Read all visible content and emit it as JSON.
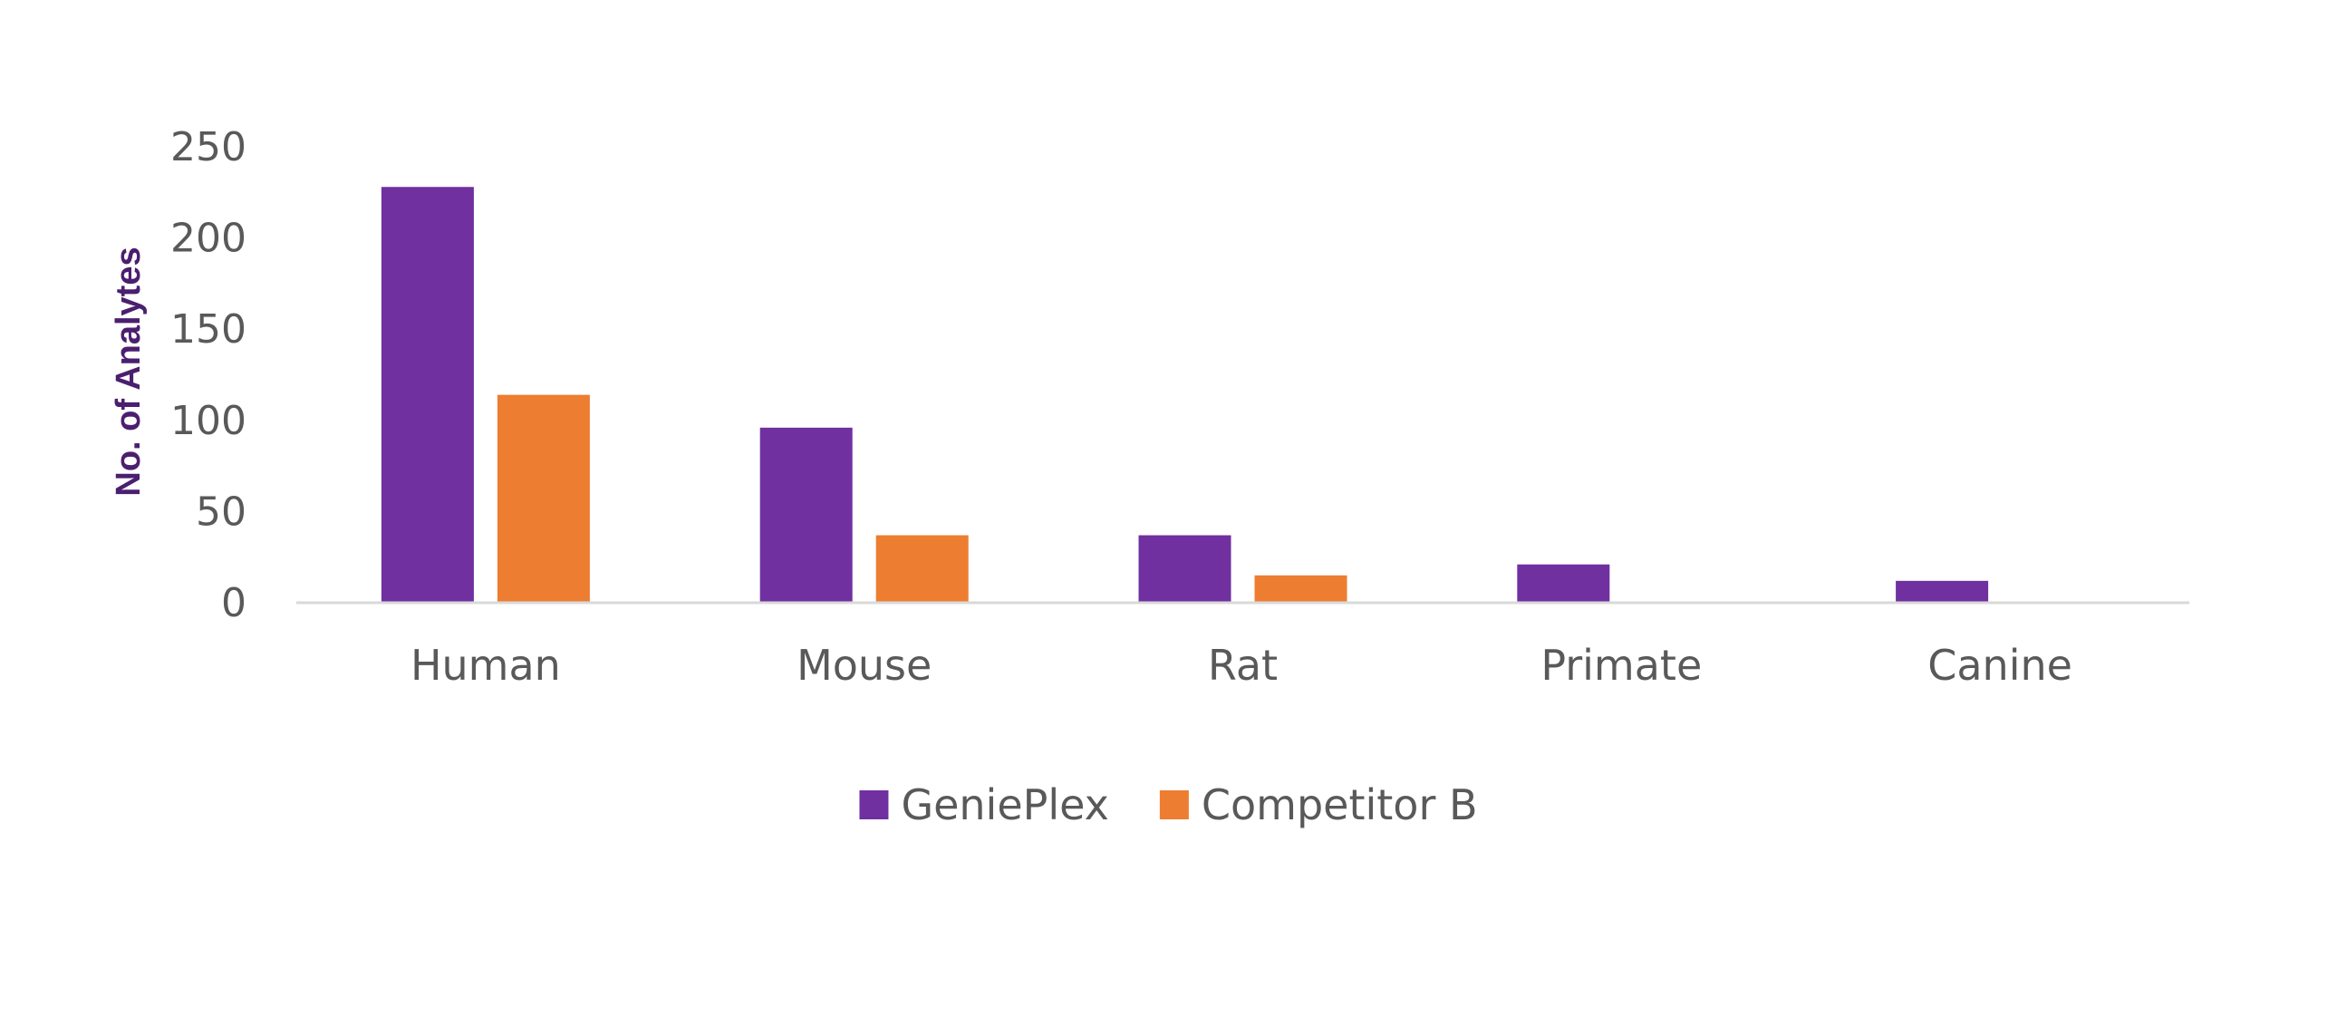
{
  "chart_data": {
    "type": "bar",
    "title": "",
    "xlabel": "",
    "ylabel": "No. of Analytes",
    "ylim": [
      0,
      250
    ],
    "yticks": [
      0,
      50,
      100,
      150,
      200,
      250
    ],
    "grid": false,
    "legend_position": "bottom",
    "categories": [
      "Human",
      "Mouse",
      "Rat",
      "Primate",
      "Canine"
    ],
    "series": [
      {
        "name": "GeniePlex",
        "color": "#7030a0",
        "values": [
          228,
          96,
          37,
          21,
          12
        ]
      },
      {
        "name": "Competitor B",
        "color": "#ed7d31",
        "values": [
          114,
          37,
          15,
          0,
          0
        ]
      }
    ]
  },
  "colors": {
    "axis_line": "#d9d9d9",
    "text": "#595959",
    "ylabel": "#4b1f6f"
  }
}
